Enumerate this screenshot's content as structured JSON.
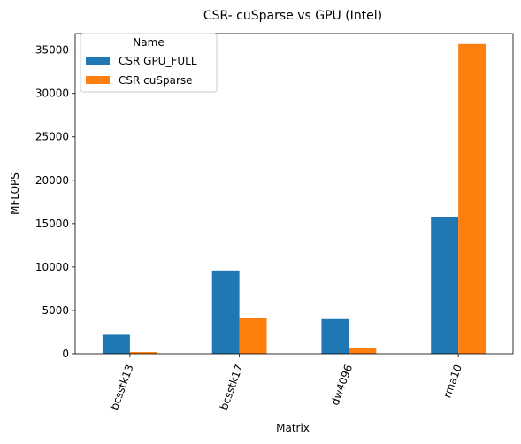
{
  "chart_data": {
    "type": "bar",
    "title": "CSR- cuSparse vs GPU (Intel)",
    "xlabel": "Matrix",
    "ylabel": "MFLOPS",
    "categories": [
      "bcsstk13",
      "bcsstk17",
      "dw4096",
      "rma10"
    ],
    "series": [
      {
        "name": "CSR GPU_FULL",
        "color": "#1f77b4",
        "values": [
          2200,
          9600,
          4000,
          15800
        ]
      },
      {
        "name": "CSR cuSparse",
        "color": "#ff7f0e",
        "values": [
          200,
          4100,
          700,
          35700
        ]
      }
    ],
    "ylim": [
      0,
      36900
    ],
    "yticks": [
      0,
      5000,
      10000,
      15000,
      20000,
      25000,
      30000,
      35000
    ],
    "ytick_labels": [
      "0",
      "5000",
      "10000",
      "15000",
      "20000",
      "25000",
      "30000",
      "35000"
    ],
    "grid": false,
    "legend": {
      "title": "Name",
      "placement": "top-left"
    }
  }
}
